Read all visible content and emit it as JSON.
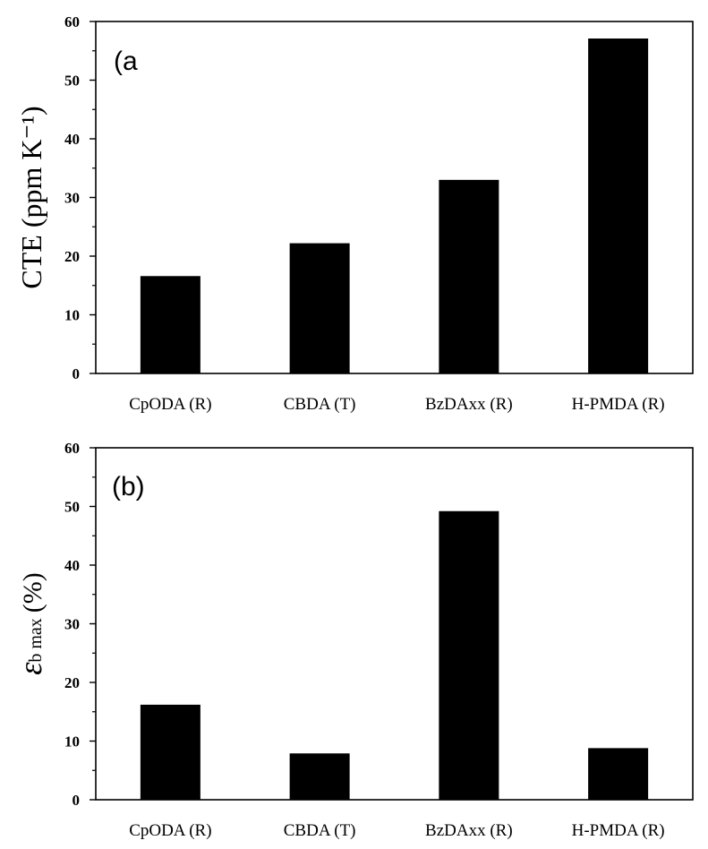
{
  "chart_data": [
    {
      "type": "bar",
      "panel_label": "(a",
      "ylabel": "CTE (ppm K⁻¹)",
      "categories": [
        "CpODA (R)",
        "CBDA (T)",
        "BzDAxx (R)",
        "H-PMDA (R)"
      ],
      "values": [
        16.6,
        22.2,
        33.0,
        57.1
      ],
      "ylim": [
        0,
        60
      ],
      "yticks": [
        0,
        10,
        20,
        30,
        40,
        50,
        60
      ],
      "bar_color": "#000000",
      "grid": false
    },
    {
      "type": "bar",
      "panel_label": "(b)",
      "ylabel": "εb max (%)",
      "ylabel_parts": {
        "symbol": "ε",
        "subscript": "b max",
        "unit": "(%)"
      },
      "categories": [
        "CpODA (R)",
        "CBDA (T)",
        "BzDAxx (R)",
        "H-PMDA (R)"
      ],
      "values": [
        16.2,
        7.9,
        49.2,
        8.8
      ],
      "ylim": [
        0,
        60
      ],
      "yticks": [
        0,
        10,
        20,
        30,
        40,
        50,
        60
      ],
      "bar_color": "#000000",
      "grid": false
    }
  ]
}
